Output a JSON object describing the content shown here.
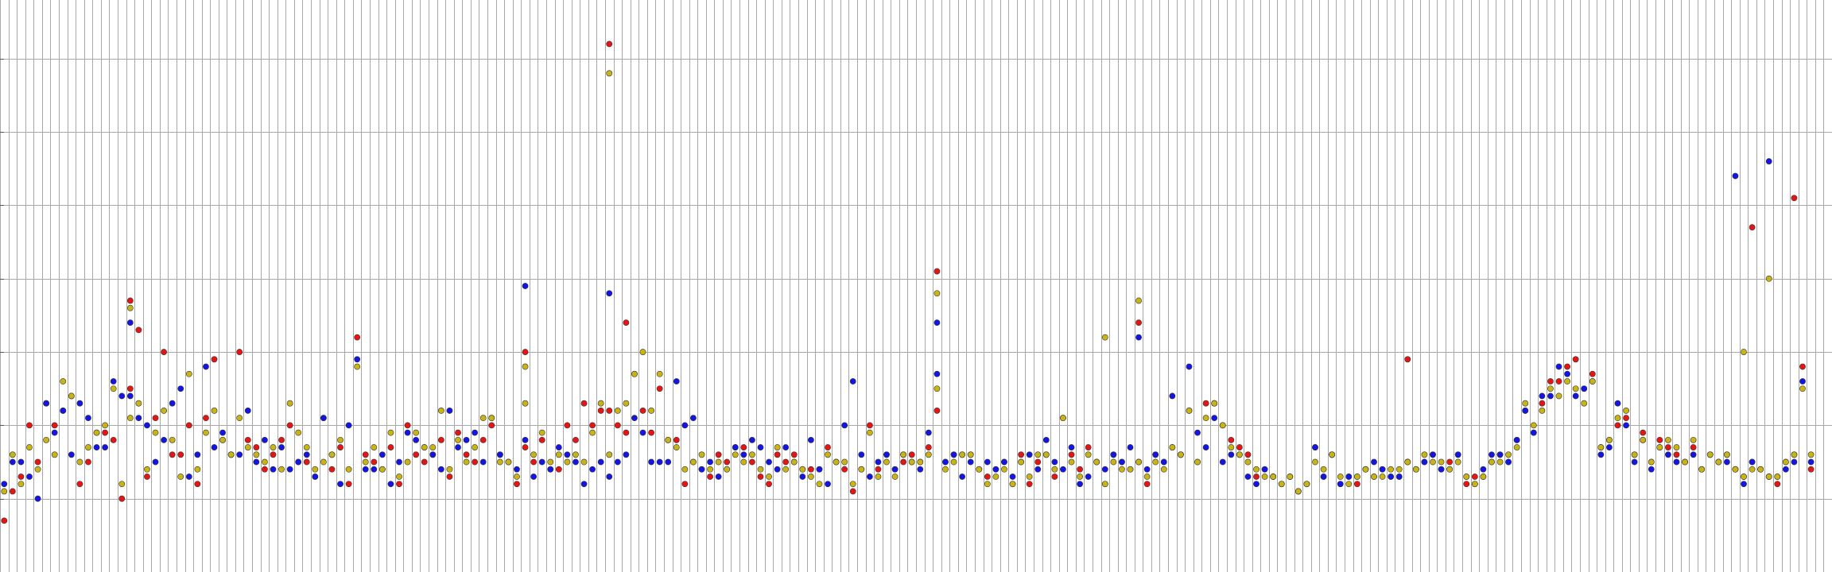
{
  "chart_data": {
    "type": "scatter",
    "title": "",
    "xlabel": "",
    "ylabel": "",
    "grid": true,
    "legend": "none",
    "xlim": [
      0,
      218
    ],
    "ylim": [
      0,
      7.8
    ],
    "x_grid_step": 1,
    "y_grid_step": 1,
    "series": [
      {
        "color": "#e81414",
        "values": [
          0.7,
          1.1,
          1.3,
          2.0,
          1.5,
          2.3,
          2.0,
          2.2,
          2.4,
          1.2,
          1.5,
          1.9,
          1.9,
          1.8,
          1.0,
          2.5,
          3.3,
          1.3,
          2.1,
          3.0,
          1.6,
          1.6,
          2.0,
          1.2,
          2.1,
          2.9,
          1.8,
          1.6,
          3.0,
          1.8,
          1.7,
          1.4,
          1.6,
          1.8,
          2.0,
          1.5,
          1.5,
          1.3,
          2.1,
          1.4,
          1.7,
          1.2,
          3.2,
          1.6,
          1.5,
          1.4,
          1.7,
          1.2,
          2.0,
          1.6,
          1.5,
          1.6,
          1.8,
          1.3,
          1.9,
          1.6,
          1.5,
          1.8,
          2.0,
          1.6,
          1.5,
          1.2,
          1.7,
          1.5,
          1.8,
          1.4,
          1.4,
          2.0,
          1.8,
          2.3,
          2.0,
          2.2,
          2.2,
          2.0,
          1.9,
          2.7,
          2.2,
          1.9,
          2.5,
          1.8,
          1.8,
          1.2,
          1.5,
          1.4,
          1.3,
          1.6,
          1.5,
          1.7,
          1.7,
          1.5,
          1.3,
          1.2,
          1.6,
          1.5,
          1.6,
          1.4,
          1.4,
          1.4,
          1.7,
          1.5,
          1.4,
          1.1,
          1.4,
          2.0,
          1.4,
          1.6,
          1.4,
          1.5,
          1.6,
          1.5,
          1.7,
          2.2,
          1.5,
          1.6,
          1.6,
          1.6,
          1.4,
          1.3,
          1.4,
          1.5,
          1.2,
          1.6,
          1.2,
          1.5,
          1.6,
          1.3,
          2.1,
          1.6,
          1.4,
          1.7,
          1.5,
          1.2,
          1.6,
          1.5,
          1.4,
          1.5,
          1.2,
          1.6,
          1.5,
          1.7,
          1.6,
          2.2,
          1.5,
          2.3,
          2.3,
          2.0,
          1.8,
          1.7,
          1.6,
          1.3,
          1.4,
          1.3,
          1.2,
          1.3,
          1.1,
          1.2,
          1.7,
          1.3,
          1.6,
          1.2,
          1.3,
          1.2,
          1.4,
          1.3,
          1.4,
          1.3,
          1.3,
          1.5,
          1.4,
          1.5,
          1.6,
          1.4,
          1.5,
          1.6,
          1.2,
          1.3,
          1.3,
          1.5,
          1.6,
          1.5,
          1.8,
          2.2,
          1.9,
          2.3,
          2.6,
          2.6,
          2.8,
          2.9,
          2.5,
          2.7,
          1.7,
          1.8,
          2.0,
          2.1,
          1.6,
          1.9,
          1.5,
          1.8,
          1.7,
          1.6,
          1.5,
          1.7,
          1.4,
          1.6,
          1.5,
          1.6,
          1.4,
          1.3,
          1.5,
          1.4,
          1.3,
          1.2,
          1.5,
          1.6,
          2.8,
          1.4
        ],
        "outliers": [
          [
            72,
            7.2
          ],
          [
            15,
            3.7
          ],
          [
            74,
            3.4
          ],
          [
            62,
            3.0
          ],
          [
            111,
            4.1
          ],
          [
            135,
            3.4
          ],
          [
            167,
            2.9
          ],
          [
            208,
            4.7
          ],
          [
            213,
            5.1
          ]
        ]
      },
      {
        "color": "#1414e8",
        "values": [
          1.2,
          1.5,
          1.5,
          1.3,
          1.0,
          2.3,
          1.9,
          2.2,
          1.6,
          2.3,
          2.1,
          1.7,
          1.7,
          2.6,
          2.4,
          2.4,
          2.1,
          2.0,
          1.5,
          1.8,
          2.3,
          2.5,
          1.3,
          1.6,
          2.8,
          1.7,
          1.9,
          1.6,
          1.6,
          2.2,
          1.5,
          1.8,
          1.4,
          1.7,
          1.4,
          1.5,
          1.6,
          1.3,
          2.1,
          1.6,
          1.2,
          2.0,
          2.9,
          1.4,
          1.4,
          1.6,
          1.2,
          1.5,
          1.9,
          1.8,
          1.7,
          1.6,
          1.4,
          2.2,
          1.7,
          1.8,
          1.9,
          1.5,
          2.1,
          1.6,
          1.5,
          1.4,
          1.8,
          1.3,
          1.5,
          1.4,
          1.7,
          1.6,
          1.5,
          1.2,
          1.4,
          1.5,
          1.3,
          1.5,
          1.6,
          2.1,
          1.9,
          1.5,
          1.5,
          1.5,
          2.6,
          2.0,
          2.1,
          1.4,
          1.5,
          1.3,
          1.4,
          1.7,
          1.6,
          1.8,
          1.7,
          1.5,
          1.4,
          1.7,
          1.5,
          1.3,
          1.8,
          1.4,
          1.2,
          1.5,
          2.0,
          2.6,
          1.6,
          1.3,
          1.5,
          1.6,
          1.4,
          1.6,
          1.5,
          1.4,
          1.9,
          2.7,
          1.5,
          1.6,
          1.3,
          1.5,
          1.4,
          1.5,
          1.4,
          1.5,
          1.3,
          1.5,
          1.6,
          1.4,
          1.8,
          1.5,
          1.4,
          1.7,
          1.2,
          1.3,
          1.5,
          1.4,
          1.6,
          1.5,
          1.7,
          1.5,
          1.4,
          1.6,
          1.5,
          2.4,
          1.6,
          2.8,
          1.9,
          1.7,
          2.1,
          1.5,
          1.6,
          1.6,
          1.3,
          1.2,
          1.4,
          1.3,
          1.2,
          1.3,
          1.1,
          1.2,
          1.7,
          1.3,
          1.6,
          1.2,
          1.3,
          1.3,
          1.4,
          1.5,
          1.4,
          1.3,
          1.3,
          1.5,
          1.4,
          1.5,
          1.6,
          1.4,
          1.4,
          1.6,
          1.3,
          1.2,
          1.4,
          1.6,
          1.6,
          1.5,
          1.8,
          2.2,
          1.9,
          2.4,
          2.4,
          2.8,
          2.7,
          2.4,
          2.5,
          2.6,
          1.6,
          1.7,
          2.3,
          2.0,
          1.5,
          1.8,
          1.4,
          1.7,
          1.6,
          1.5,
          1.5,
          1.6,
          1.4,
          1.6,
          1.5,
          1.5,
          1.4,
          1.2,
          1.5,
          1.4,
          1.3,
          1.3,
          1.4,
          1.5,
          2.6,
          1.5
        ],
        "outliers": [
          [
            72,
            3.8
          ],
          [
            15,
            3.4
          ],
          [
            62,
            3.9
          ],
          [
            111,
            3.4
          ],
          [
            135,
            3.2
          ],
          [
            206,
            5.4
          ],
          [
            210,
            5.6
          ]
        ]
      },
      {
        "color": "#c8b414",
        "values": [
          1.1,
          1.6,
          1.2,
          1.7,
          1.4,
          1.8,
          1.6,
          2.6,
          2.4,
          1.5,
          1.7,
          1.9,
          2.0,
          2.5,
          1.2,
          2.1,
          2.3,
          1.4,
          1.9,
          2.2,
          1.8,
          1.3,
          2.7,
          1.4,
          1.9,
          2.2,
          1.8,
          1.6,
          2.1,
          1.7,
          1.6,
          1.5,
          1.7,
          1.4,
          2.3,
          1.9,
          1.7,
          1.4,
          1.5,
          1.6,
          1.8,
          1.4,
          2.8,
          1.5,
          1.7,
          1.4,
          1.9,
          1.3,
          1.5,
          1.9,
          1.7,
          1.7,
          2.2,
          1.4,
          1.8,
          1.5,
          1.7,
          2.1,
          2.1,
          1.5,
          1.5,
          1.3,
          2.3,
          1.6,
          1.9,
          1.5,
          1.6,
          1.5,
          1.6,
          1.5,
          1.9,
          2.3,
          1.6,
          2.2,
          2.3,
          2.7,
          3.0,
          2.2,
          2.7,
          1.8,
          1.7,
          1.4,
          1.5,
          1.6,
          1.4,
          1.5,
          1.4,
          1.6,
          1.5,
          1.6,
          1.4,
          1.3,
          1.7,
          1.4,
          1.5,
          1.4,
          1.3,
          1.2,
          1.6,
          1.5,
          1.5,
          1.2,
          1.4,
          1.9,
          1.3,
          1.5,
          1.3,
          1.6,
          1.5,
          1.5,
          1.6,
          2.5,
          1.4,
          1.5,
          1.6,
          1.6,
          1.4,
          1.2,
          1.3,
          1.4,
          1.2,
          1.5,
          1.3,
          1.6,
          1.6,
          1.4,
          2.1,
          1.5,
          1.3,
          1.6,
          1.5,
          1.2,
          1.5,
          1.4,
          1.4,
          1.5,
          1.3,
          1.5,
          1.4,
          1.7,
          1.6,
          2.2,
          1.5,
          2.1,
          2.3,
          2.0,
          1.7,
          1.6,
          1.5,
          1.4,
          1.3,
          1.3,
          1.2,
          1.3,
          1.1,
          1.2,
          1.5,
          1.4,
          1.6,
          1.3,
          1.2,
          1.3,
          1.4,
          1.3,
          1.3,
          1.4,
          1.4,
          1.5,
          1.4,
          1.6,
          1.5,
          1.5,
          1.4,
          1.5,
          1.3,
          1.2,
          1.3,
          1.5,
          1.5,
          1.6,
          1.7,
          2.3,
          2.0,
          2.2,
          2.5,
          2.4,
          2.6,
          2.5,
          2.3,
          2.6,
          1.7,
          1.8,
          2.1,
          2.2,
          1.6,
          1.8,
          1.5,
          1.7,
          1.8,
          1.7,
          1.5,
          1.8,
          1.4,
          1.6,
          1.5,
          1.6,
          1.4,
          1.3,
          1.4,
          1.4,
          1.3,
          1.3,
          1.5,
          1.6,
          2.5,
          1.6
        ],
        "outliers": [
          [
            72,
            6.8
          ],
          [
            15,
            3.6
          ],
          [
            62,
            2.8
          ],
          [
            111,
            3.8
          ],
          [
            135,
            3.7
          ],
          [
            131,
            3.2
          ],
          [
            207,
            3.0
          ],
          [
            210,
            4.0
          ]
        ]
      }
    ]
  }
}
